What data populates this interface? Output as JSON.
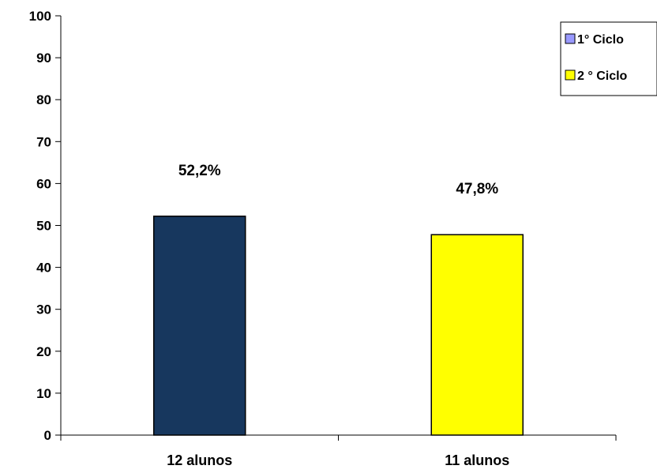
{
  "chart_data": {
    "type": "bar",
    "categories": [
      "12 alunos",
      "11 alunos"
    ],
    "series": [
      {
        "name": "1° Ciclo",
        "values": [
          52.2,
          null
        ]
      },
      {
        "name": "2 ° Ciclo",
        "values": [
          null,
          47.8
        ]
      }
    ],
    "values": [
      52.2,
      47.8
    ],
    "data_labels": [
      "52,2%",
      "47,8%"
    ],
    "bar_colors": [
      "#17375e",
      "#ffff00"
    ],
    "legend": {
      "position": "top-right",
      "entries": [
        {
          "label": "1° Ciclo",
          "color": "#9999ff"
        },
        {
          "label": "2 ° Ciclo",
          "color": "#ffff00"
        }
      ]
    },
    "ylim": [
      0,
      100
    ],
    "yticks": [
      0,
      10,
      20,
      30,
      40,
      50,
      60,
      70,
      80,
      90,
      100
    ],
    "grid": false
  }
}
